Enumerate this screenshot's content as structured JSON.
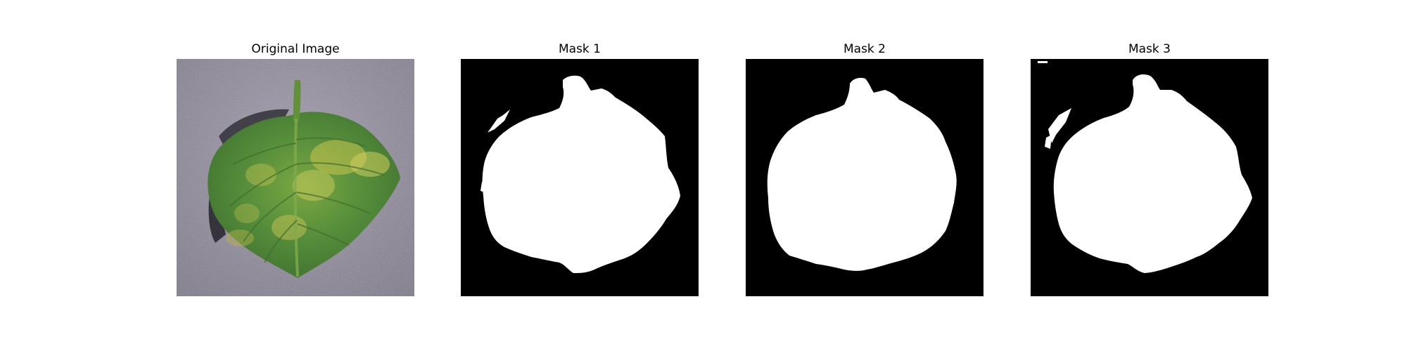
{
  "panels": [
    {
      "title": "Original Image"
    },
    {
      "title": "Mask 1"
    },
    {
      "title": "Mask 2"
    },
    {
      "title": "Mask 3"
    }
  ],
  "colors": {
    "mask_background": "#000000",
    "mask_foreground": "#ffffff",
    "photo_background": "#8f8a9a",
    "leaf_green": "#4f8a35",
    "leaf_yellow": "#c9c64a"
  },
  "icons": {
    "original": "leaf-photo",
    "mask": "binary-segmentation-mask"
  }
}
